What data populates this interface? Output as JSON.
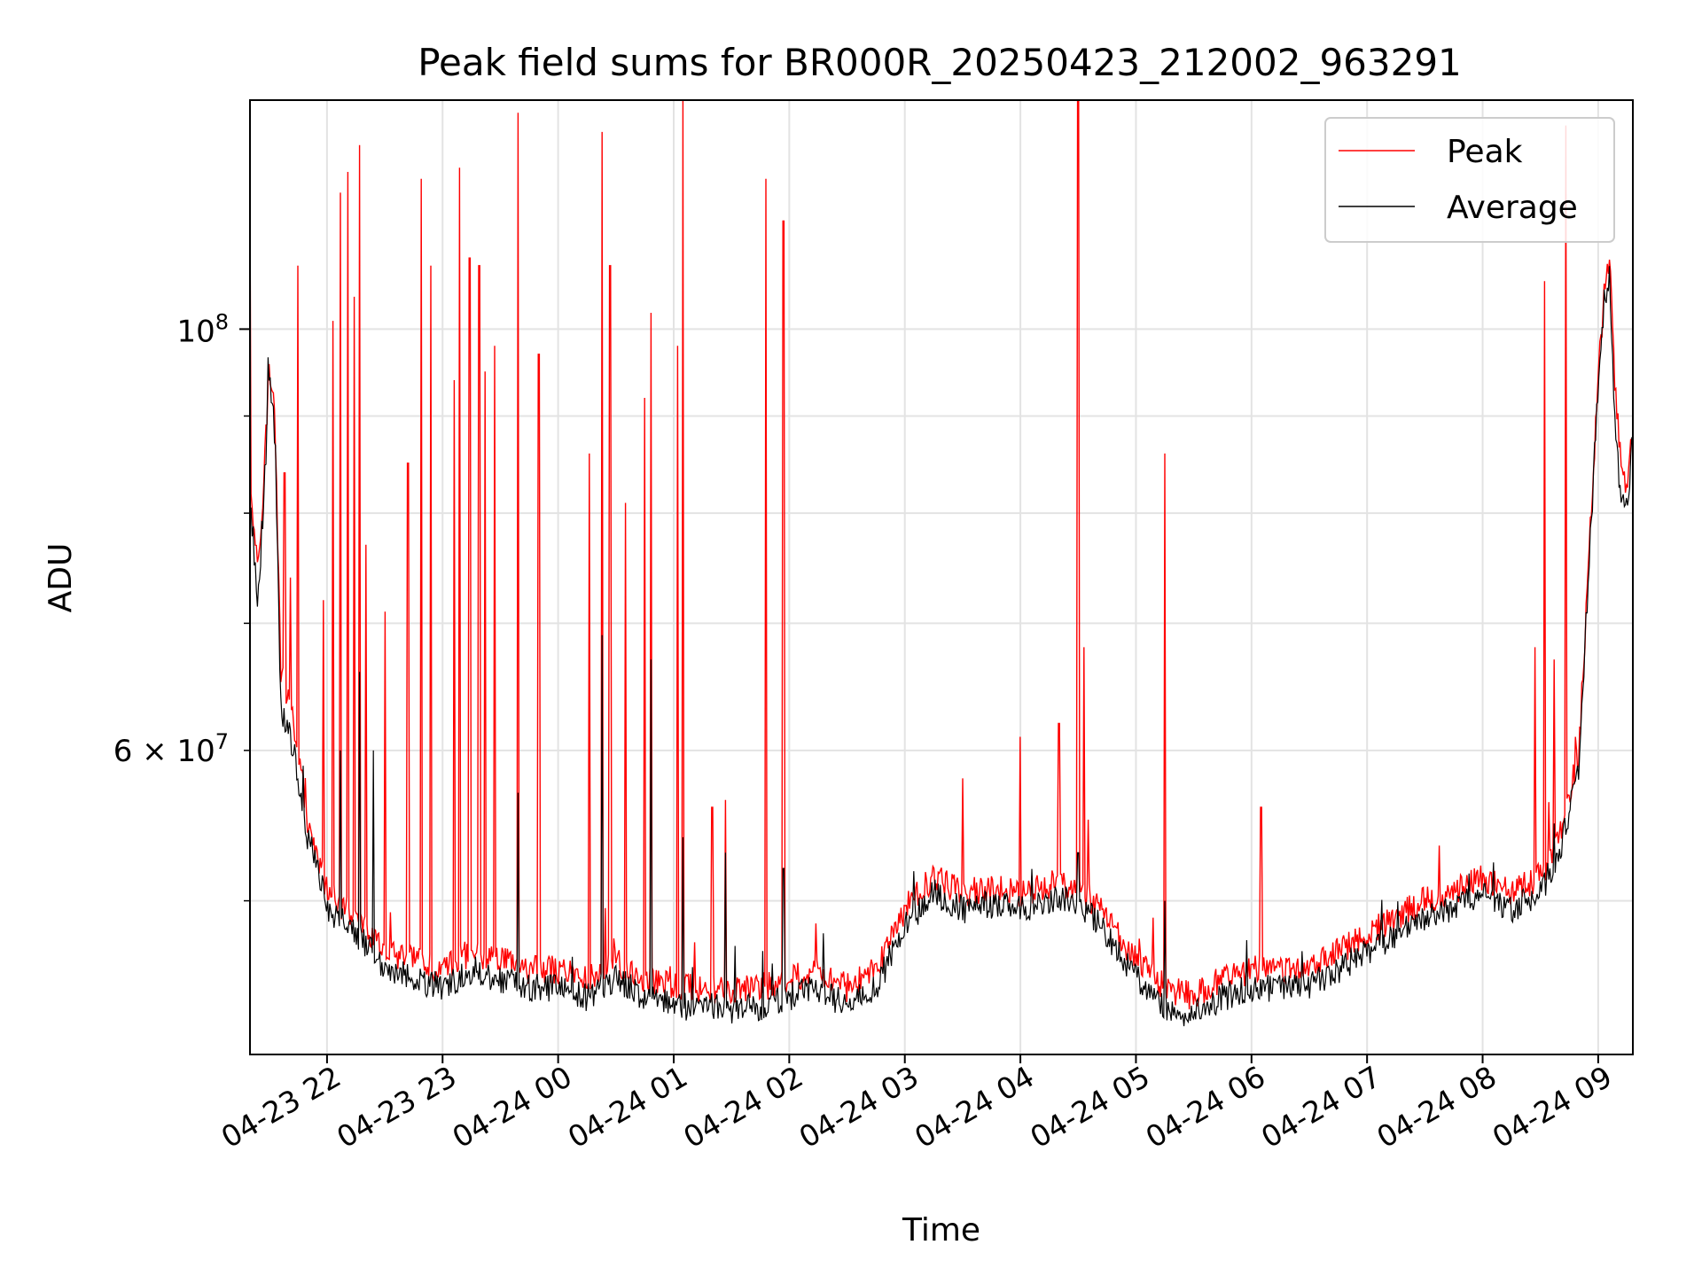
{
  "chart_data": {
    "type": "line",
    "title": "Peak field sums for BR000R_20250423_212002_963291",
    "xlabel": "Time",
    "ylabel": "ADU",
    "y_scale": "log",
    "ylim": [
      41500000,
      132000000
    ],
    "xlim": [
      "2025-04-23 21:20",
      "2025-04-24 09:18"
    ],
    "grid": true,
    "legend_position": "top-right",
    "x_tick_labels": [
      "04-23 22",
      "04-23 23",
      "04-24 00",
      "04-24 01",
      "04-24 02",
      "04-24 03",
      "04-24 04",
      "04-24 05",
      "04-24 06",
      "04-24 07",
      "04-24 08",
      "04-24 09"
    ],
    "x_ticks": [
      "2025-04-23 22:00",
      "2025-04-23 23:00",
      "2025-04-24 00:00",
      "2025-04-24 01:00",
      "2025-04-24 02:00",
      "2025-04-24 03:00",
      "2025-04-24 04:00",
      "2025-04-24 05:00",
      "2025-04-24 06:00",
      "2025-04-24 07:00",
      "2025-04-24 08:00",
      "2025-04-24 09:00"
    ],
    "y_major_ticks": [
      {
        "value": 100000000,
        "base": "10",
        "exp": "8"
      }
    ],
    "y_minor_ticks": [
      {
        "value": 60000000,
        "mant": "6",
        "base": "10",
        "exp": "7"
      }
    ],
    "y_minor_unlabeled": [
      50000000,
      70000000,
      80000000,
      90000000
    ],
    "series": [
      {
        "name": "Peak",
        "color": "#ff0000",
        "x": [
          "2025-04-23 21:20",
          "2025-04-23 21:24",
          "2025-04-23 21:27",
          "2025-04-23 21:30",
          "2025-04-23 21:33",
          "2025-04-23 21:36",
          "2025-04-23 21:40",
          "2025-04-23 21:45",
          "2025-04-23 21:50",
          "2025-04-23 21:55",
          "2025-04-23 22:00",
          "2025-04-23 22:10",
          "2025-04-23 22:20",
          "2025-04-23 22:30",
          "2025-04-23 22:45",
          "2025-04-23 23:00",
          "2025-04-23 23:15",
          "2025-04-23 23:30",
          "2025-04-23 23:45",
          "2025-04-24 00:00",
          "2025-04-24 00:15",
          "2025-04-24 00:30",
          "2025-04-24 00:45",
          "2025-04-24 01:00",
          "2025-04-24 01:15",
          "2025-04-24 01:30",
          "2025-04-24 01:45",
          "2025-04-24 02:00",
          "2025-04-24 02:15",
          "2025-04-24 02:30",
          "2025-04-24 02:45",
          "2025-04-24 03:00",
          "2025-04-24 03:15",
          "2025-04-24 03:30",
          "2025-04-24 03:45",
          "2025-04-24 04:00",
          "2025-04-24 04:15",
          "2025-04-24 04:30",
          "2025-04-24 04:45",
          "2025-04-24 05:00",
          "2025-04-24 05:15",
          "2025-04-24 05:30",
          "2025-04-24 05:45",
          "2025-04-24 06:00",
          "2025-04-24 06:15",
          "2025-04-24 06:30",
          "2025-04-24 06:45",
          "2025-04-24 07:00",
          "2025-04-24 07:15",
          "2025-04-24 07:30",
          "2025-04-24 07:45",
          "2025-04-24 08:00",
          "2025-04-24 08:15",
          "2025-04-24 08:30",
          "2025-04-24 08:40",
          "2025-04-24 08:50",
          "2025-04-24 08:55",
          "2025-04-24 09:00",
          "2025-04-24 09:03",
          "2025-04-24 09:06",
          "2025-04-24 09:09",
          "2025-04-24 09:12",
          "2025-04-24 09:15",
          "2025-04-24 09:18"
        ],
        "values": [
          84000000,
          75000000,
          82000000,
          96000000,
          90000000,
          66000000,
          64000000,
          60000000,
          55000000,
          53000000,
          50500000,
          49500000,
          48500000,
          47000000,
          46500000,
          46000000,
          47000000,
          46500000,
          46000000,
          46000000,
          45500000,
          46500000,
          45500000,
          45000000,
          45000000,
          44800000,
          45000000,
          45500000,
          46000000,
          45000000,
          46000000,
          49500000,
          51500000,
          50500000,
          50800000,
          50500000,
          51000000,
          51000000,
          49000000,
          46500000,
          45000000,
          44500000,
          45500000,
          46000000,
          46000000,
          46200000,
          47000000,
          48000000,
          49000000,
          50000000,
          50500000,
          51500000,
          50500000,
          51500000,
          54000000,
          60000000,
          75000000,
          95000000,
          104000000,
          109000000,
          92000000,
          85000000,
          82000000,
          89000000
        ],
        "spikes": [
          [
            "2025-04-23 21:20",
            115000000
          ],
          [
            "2025-04-23 21:38",
            84000000
          ],
          [
            "2025-04-23 21:41",
            74000000
          ],
          [
            "2025-04-23 21:45",
            108000000
          ],
          [
            "2025-04-23 21:58",
            72000000
          ],
          [
            "2025-04-23 22:03",
            101000000
          ],
          [
            "2025-04-23 22:07",
            118000000
          ],
          [
            "2025-04-23 22:11",
            121000000
          ],
          [
            "2025-04-23 22:14",
            104000000
          ],
          [
            "2025-04-23 22:17",
            125000000
          ],
          [
            "2025-04-23 22:20",
            77000000
          ],
          [
            "2025-04-23 22:30",
            71000000
          ],
          [
            "2025-04-23 22:42",
            85000000
          ],
          [
            "2025-04-23 22:49",
            120000000
          ],
          [
            "2025-04-23 22:54",
            108000000
          ],
          [
            "2025-04-23 23:06",
            94000000
          ],
          [
            "2025-04-23 23:09",
            120000000
          ],
          [
            "2025-04-23 23:14",
            109000000
          ],
          [
            "2025-04-23 23:19",
            108000000
          ],
          [
            "2025-04-23 23:22",
            95000000
          ],
          [
            "2025-04-23 23:27",
            98000000
          ],
          [
            "2025-04-23 23:39",
            130000000
          ],
          [
            "2025-04-23 23:50",
            97000000
          ],
          [
            "2025-04-24 00:16",
            86000000
          ],
          [
            "2025-04-24 00:23",
            127000000
          ],
          [
            "2025-04-24 00:27",
            108000000
          ],
          [
            "2025-04-24 00:35",
            81000000
          ],
          [
            "2025-04-24 00:45",
            92000000
          ],
          [
            "2025-04-24 00:48",
            102000000
          ],
          [
            "2025-04-24 01:02",
            98000000
          ],
          [
            "2025-04-24 01:05",
            132000000
          ],
          [
            "2025-04-24 01:20",
            56000000
          ],
          [
            "2025-04-24 01:27",
            56500000
          ],
          [
            "2025-04-24 01:48",
            120000000
          ],
          [
            "2025-04-24 01:57",
            114000000
          ],
          [
            "2025-04-24 03:30",
            58000000
          ],
          [
            "2025-04-24 04:00",
            61000000
          ],
          [
            "2025-04-24 04:20",
            62000000
          ],
          [
            "2025-04-24 04:30",
            133000000
          ],
          [
            "2025-04-24 04:33",
            68000000
          ],
          [
            "2025-04-24 05:15",
            86000000
          ],
          [
            "2025-04-24 06:05",
            56000000
          ],
          [
            "2025-04-24 08:27",
            68000000
          ],
          [
            "2025-04-24 08:32",
            106000000
          ],
          [
            "2025-04-24 08:37",
            67000000
          ],
          [
            "2025-04-24 08:43",
            128000000
          ]
        ]
      },
      {
        "name": "Average",
        "color": "#000000",
        "x": [
          "2025-04-23 21:20",
          "2025-04-23 21:24",
          "2025-04-23 21:27",
          "2025-04-23 21:30",
          "2025-04-23 21:33",
          "2025-04-23 21:36",
          "2025-04-23 21:40",
          "2025-04-23 21:45",
          "2025-04-23 21:50",
          "2025-04-23 21:55",
          "2025-04-23 22:00",
          "2025-04-23 22:10",
          "2025-04-23 22:20",
          "2025-04-23 22:30",
          "2025-04-23 22:45",
          "2025-04-23 23:00",
          "2025-04-23 23:15",
          "2025-04-23 23:30",
          "2025-04-23 23:45",
          "2025-04-24 00:00",
          "2025-04-24 00:15",
          "2025-04-24 00:30",
          "2025-04-24 00:45",
          "2025-04-24 01:00",
          "2025-04-24 01:15",
          "2025-04-24 01:30",
          "2025-04-24 01:45",
          "2025-04-24 02:00",
          "2025-04-24 02:15",
          "2025-04-24 02:30",
          "2025-04-24 02:45",
          "2025-04-24 03:00",
          "2025-04-24 03:15",
          "2025-04-24 03:30",
          "2025-04-24 03:45",
          "2025-04-24 04:00",
          "2025-04-24 04:15",
          "2025-04-24 04:30",
          "2025-04-24 04:45",
          "2025-04-24 05:00",
          "2025-04-24 05:15",
          "2025-04-24 05:30",
          "2025-04-24 05:45",
          "2025-04-24 06:00",
          "2025-04-24 06:15",
          "2025-04-24 06:30",
          "2025-04-24 06:45",
          "2025-04-24 07:00",
          "2025-04-24 07:15",
          "2025-04-24 07:30",
          "2025-04-24 07:45",
          "2025-04-24 08:00",
          "2025-04-24 08:15",
          "2025-04-24 08:30",
          "2025-04-24 08:40",
          "2025-04-24 08:50",
          "2025-04-24 08:55",
          "2025-04-24 09:00",
          "2025-04-24 09:03",
          "2025-04-24 09:06",
          "2025-04-24 09:09",
          "2025-04-24 09:12",
          "2025-04-24 09:15",
          "2025-04-24 09:18"
        ],
        "values": [
          82000000,
          72000000,
          80000000,
          95000000,
          88000000,
          63000000,
          62000000,
          58000000,
          54000000,
          52000000,
          49500000,
          48500000,
          47500000,
          46000000,
          45500000,
          45000000,
          46000000,
          45500000,
          45000000,
          45000000,
          44500000,
          45500000,
          44500000,
          44000000,
          44000000,
          43800000,
          44000000,
          44500000,
          45000000,
          44000000,
          45000000,
          48500000,
          50500000,
          49500000,
          49800000,
          49500000,
          50000000,
          50000000,
          48000000,
          45500000,
          44000000,
          43500000,
          44500000,
          45000000,
          45000000,
          45200000,
          46000000,
          47000000,
          48000000,
          49000000,
          49500000,
          50500000,
          49500000,
          50500000,
          53000000,
          59000000,
          74000000,
          94000000,
          103000000,
          107000000,
          88000000,
          81000000,
          80000000,
          88000000
        ],
        "spikes": [
          [
            "2025-04-23 22:07",
            60000000
          ],
          [
            "2025-04-23 22:17",
            66000000
          ],
          [
            "2025-04-23 22:24",
            60000000
          ],
          [
            "2025-04-23 23:39",
            57000000
          ],
          [
            "2025-04-24 00:23",
            69000000
          ],
          [
            "2025-04-24 00:48",
            67000000
          ],
          [
            "2025-04-24 01:05",
            54000000
          ],
          [
            "2025-04-24 01:27",
            53000000
          ],
          [
            "2025-04-24 01:57",
            52000000
          ],
          [
            "2025-04-24 04:30",
            53000000
          ],
          [
            "2025-04-24 05:15",
            50000000
          ]
        ]
      }
    ]
  }
}
